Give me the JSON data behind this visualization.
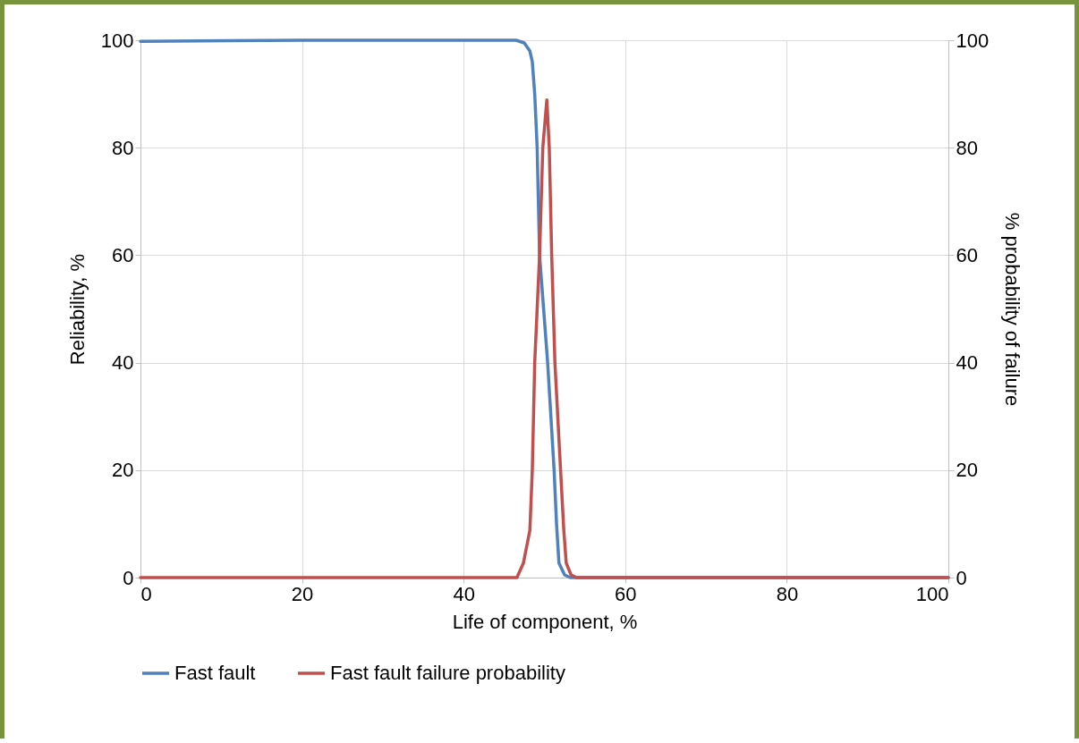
{
  "chart_data": {
    "type": "line",
    "xlabel": "Life of component, %",
    "ylabel": "Reliability, %",
    "y2label": "% probability of failure",
    "xlim": [
      0,
      100
    ],
    "xticks": [
      0,
      20,
      40,
      60,
      80,
      100
    ],
    "ylim": [
      0,
      100
    ],
    "yticks": [
      0,
      20,
      40,
      60,
      80,
      100
    ],
    "y2lim": [
      0,
      100
    ],
    "y2ticks": [
      0,
      20,
      40,
      60,
      80,
      100
    ],
    "grid": true,
    "legend": "bottom",
    "marker": "none",
    "line_style": "solid",
    "series": [
      {
        "name": "Fast fault",
        "color": "#4f81bd",
        "x": [
          0,
          20,
          46.5,
          47.5,
          48.2,
          48.5,
          48.8,
          49.1,
          49.4,
          49.9,
          50.4,
          51.2,
          51.5,
          51.8,
          52.5,
          53.2,
          60,
          100
        ],
        "values": [
          99.8,
          100,
          100,
          99.5,
          98,
          96,
          90,
          80,
          60,
          50,
          40,
          20,
          10,
          2.7,
          0.5,
          0,
          0,
          0
        ]
      },
      {
        "name": "Fast fault failure probability",
        "color": "#c0504d",
        "axis": "y2",
        "x": [
          0,
          46.6,
          47.4,
          48.2,
          48.5,
          48.8,
          49.4,
          49.8,
          50.3,
          50.6,
          50.9,
          51.3,
          52.0,
          52.4,
          52.7,
          53.3,
          54,
          100
        ],
        "values": [
          0,
          0,
          2.7,
          8.8,
          20,
          40,
          60,
          80,
          88.9,
          80,
          60,
          40,
          20,
          8.8,
          2.7,
          0.5,
          0,
          0
        ]
      }
    ]
  }
}
